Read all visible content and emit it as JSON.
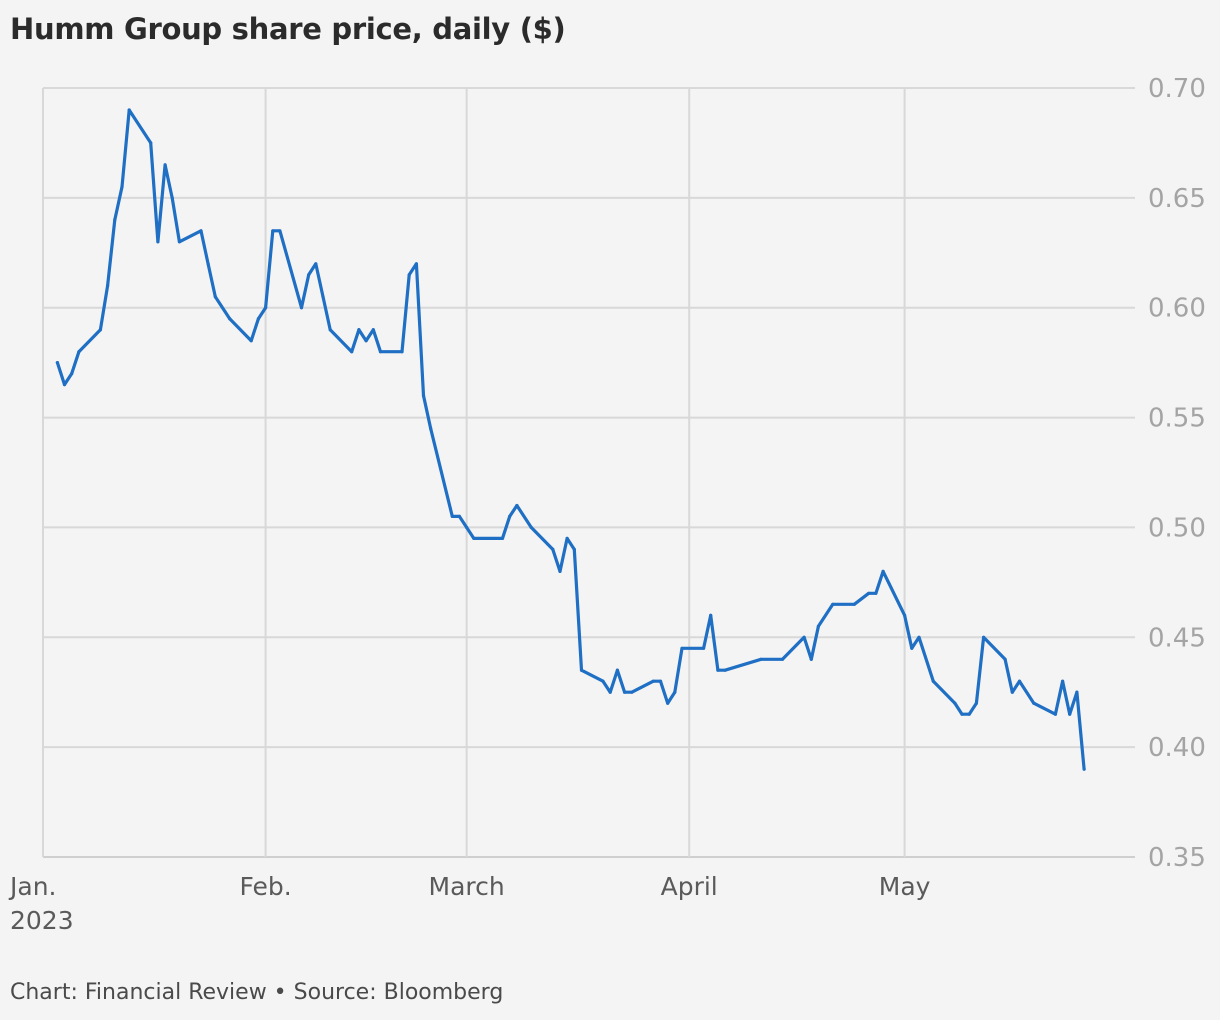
{
  "title": "Humm Group share price, daily ($)",
  "source": "Chart: Financial Review • Source: Bloomberg",
  "colors": {
    "line": "#1f6fc4",
    "grid": "#d8d8d8",
    "background": "#f4f4f4"
  },
  "chart_data": {
    "type": "line",
    "title": "Humm Group share price, daily ($)",
    "xlabel": "",
    "ylabel": "",
    "ylim": [
      0.35,
      0.7
    ],
    "yticks": [
      "0.70",
      "0.65",
      "0.60",
      "0.55",
      "0.50",
      "0.45",
      "0.40",
      "0.35"
    ],
    "y_axis_position": "right",
    "grid": true,
    "legend": "none",
    "xlim": [
      "2023-01-01",
      "2023-05-31"
    ],
    "xticks": [
      {
        "date": "2023-01-01",
        "label": "Jan.",
        "sublabel": "2023"
      },
      {
        "date": "2023-02-01",
        "label": "Feb."
      },
      {
        "date": "2023-03-01",
        "label": "March"
      },
      {
        "date": "2023-04-01",
        "label": "April"
      },
      {
        "date": "2023-05-01",
        "label": "May"
      }
    ],
    "series": [
      {
        "values": [
          [
            "2023-01-03",
            0.575
          ],
          [
            "2023-01-04",
            0.565
          ],
          [
            "2023-01-05",
            0.57
          ],
          [
            "2023-01-06",
            0.58
          ],
          [
            "2023-01-09",
            0.59
          ],
          [
            "2023-01-10",
            0.61
          ],
          [
            "2023-01-11",
            0.64
          ],
          [
            "2023-01-12",
            0.655
          ],
          [
            "2023-01-13",
            0.69
          ],
          [
            "2023-01-16",
            0.675
          ],
          [
            "2023-01-17",
            0.63
          ],
          [
            "2023-01-18",
            0.665
          ],
          [
            "2023-01-19",
            0.65
          ],
          [
            "2023-01-20",
            0.63
          ],
          [
            "2023-01-23",
            0.635
          ],
          [
            "2023-01-24",
            0.62
          ],
          [
            "2023-01-25",
            0.605
          ],
          [
            "2023-01-27",
            0.595
          ],
          [
            "2023-01-30",
            0.585
          ],
          [
            "2023-01-31",
            0.595
          ],
          [
            "2023-02-01",
            0.6
          ],
          [
            "2023-02-02",
            0.635
          ],
          [
            "2023-02-03",
            0.635
          ],
          [
            "2023-02-06",
            0.6
          ],
          [
            "2023-02-07",
            0.615
          ],
          [
            "2023-02-08",
            0.62
          ],
          [
            "2023-02-09",
            0.605
          ],
          [
            "2023-02-10",
            0.59
          ],
          [
            "2023-02-13",
            0.58
          ],
          [
            "2023-02-14",
            0.59
          ],
          [
            "2023-02-15",
            0.585
          ],
          [
            "2023-02-16",
            0.59
          ],
          [
            "2023-02-17",
            0.58
          ],
          [
            "2023-02-20",
            0.58
          ],
          [
            "2023-02-21",
            0.615
          ],
          [
            "2023-02-22",
            0.62
          ],
          [
            "2023-02-23",
            0.56
          ],
          [
            "2023-02-24",
            0.545
          ],
          [
            "2023-02-27",
            0.505
          ],
          [
            "2023-02-28",
            0.505
          ],
          [
            "2023-03-01",
            0.5
          ],
          [
            "2023-03-02",
            0.495
          ],
          [
            "2023-03-06",
            0.495
          ],
          [
            "2023-03-07",
            0.505
          ],
          [
            "2023-03-08",
            0.51
          ],
          [
            "2023-03-10",
            0.5
          ],
          [
            "2023-03-13",
            0.49
          ],
          [
            "2023-03-14",
            0.48
          ],
          [
            "2023-03-15",
            0.495
          ],
          [
            "2023-03-16",
            0.49
          ],
          [
            "2023-03-17",
            0.435
          ],
          [
            "2023-03-20",
            0.43
          ],
          [
            "2023-03-21",
            0.425
          ],
          [
            "2023-03-22",
            0.435
          ],
          [
            "2023-03-23",
            0.425
          ],
          [
            "2023-03-24",
            0.425
          ],
          [
            "2023-03-27",
            0.43
          ],
          [
            "2023-03-28",
            0.43
          ],
          [
            "2023-03-29",
            0.42
          ],
          [
            "2023-03-30",
            0.425
          ],
          [
            "2023-03-31",
            0.445
          ],
          [
            "2023-04-03",
            0.445
          ],
          [
            "2023-04-04",
            0.46
          ],
          [
            "2023-04-05",
            0.435
          ],
          [
            "2023-04-06",
            0.435
          ],
          [
            "2023-04-11",
            0.44
          ],
          [
            "2023-04-14",
            0.44
          ],
          [
            "2023-04-17",
            0.45
          ],
          [
            "2023-04-18",
            0.44
          ],
          [
            "2023-04-19",
            0.455
          ],
          [
            "2023-04-21",
            0.465
          ],
          [
            "2023-04-24",
            0.465
          ],
          [
            "2023-04-26",
            0.47
          ],
          [
            "2023-04-27",
            0.47
          ],
          [
            "2023-04-28",
            0.48
          ],
          [
            "2023-05-01",
            0.46
          ],
          [
            "2023-05-02",
            0.445
          ],
          [
            "2023-05-03",
            0.45
          ],
          [
            "2023-05-05",
            0.43
          ],
          [
            "2023-05-08",
            0.42
          ],
          [
            "2023-05-09",
            0.415
          ],
          [
            "2023-05-10",
            0.415
          ],
          [
            "2023-05-11",
            0.42
          ],
          [
            "2023-05-12",
            0.45
          ],
          [
            "2023-05-15",
            0.44
          ],
          [
            "2023-05-16",
            0.425
          ],
          [
            "2023-05-17",
            0.43
          ],
          [
            "2023-05-19",
            0.42
          ],
          [
            "2023-05-22",
            0.415
          ],
          [
            "2023-05-23",
            0.43
          ],
          [
            "2023-05-24",
            0.415
          ],
          [
            "2023-05-25",
            0.425
          ],
          [
            "2023-05-26",
            0.39
          ]
        ]
      }
    ]
  }
}
